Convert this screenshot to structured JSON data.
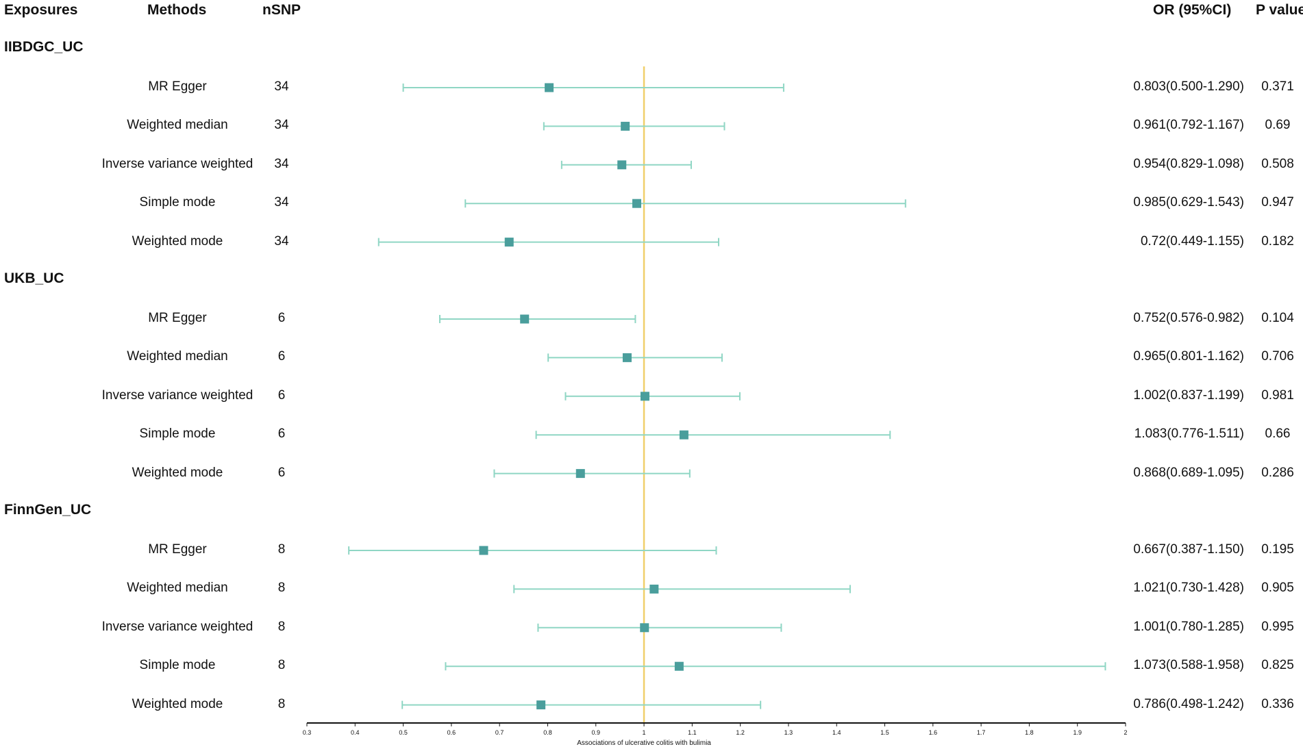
{
  "headers": {
    "exposures": "Exposures",
    "methods": "Methods",
    "nsnp": "nSNP",
    "or": "OR (95%CI)",
    "p": "P value"
  },
  "colors": {
    "errorbar": "#8fd6c4",
    "marker": "#4a9e9c",
    "refline": "#f0cf6a",
    "axis": "#111111"
  },
  "groups": [
    {
      "name": "IIBDGC_UC",
      "rows": [
        {
          "method": "MR Egger",
          "nsnp": "34",
          "or_text": "0.803(0.500-1.290)",
          "p": "0.371"
        },
        {
          "method": "Weighted median",
          "nsnp": "34",
          "or_text": "0.961(0.792-1.167)",
          "p": "0.69"
        },
        {
          "method": "Inverse variance weighted",
          "nsnp": "34",
          "or_text": "0.954(0.829-1.098)",
          "p": "0.508"
        },
        {
          "method": "Simple mode",
          "nsnp": "34",
          "or_text": "0.985(0.629-1.543)",
          "p": "0.947"
        },
        {
          "method": "Weighted mode",
          "nsnp": "34",
          "or_text": "0.72(0.449-1.155)",
          "p": "0.182"
        }
      ]
    },
    {
      "name": "UKB_UC",
      "rows": [
        {
          "method": "MR Egger",
          "nsnp": "6",
          "or_text": "0.752(0.576-0.982)",
          "p": "0.104"
        },
        {
          "method": "Weighted median",
          "nsnp": "6",
          "or_text": "0.965(0.801-1.162)",
          "p": "0.706"
        },
        {
          "method": "Inverse variance weighted",
          "nsnp": "6",
          "or_text": "1.002(0.837-1.199)",
          "p": "0.981"
        },
        {
          "method": "Simple mode",
          "nsnp": "6",
          "or_text": "1.083(0.776-1.511)",
          "p": "0.66"
        },
        {
          "method": "Weighted mode",
          "nsnp": "6",
          "or_text": "0.868(0.689-1.095)",
          "p": "0.286"
        }
      ]
    },
    {
      "name": "FinnGen_UC",
      "rows": [
        {
          "method": "MR Egger",
          "nsnp": "8",
          "or_text": "0.667(0.387-1.150)",
          "p": "0.195"
        },
        {
          "method": "Weighted median",
          "nsnp": "8",
          "or_text": "1.021(0.730-1.428)",
          "p": "0.905"
        },
        {
          "method": "Inverse variance weighted",
          "nsnp": "8",
          "or_text": "1.001(0.780-1.285)",
          "p": "0.995"
        },
        {
          "method": "Simple mode",
          "nsnp": "8",
          "or_text": "1.073(0.588-1.958)",
          "p": "0.825"
        },
        {
          "method": "Weighted mode",
          "nsnp": "8",
          "or_text": "0.786(0.498-1.242)",
          "p": "0.336"
        }
      ]
    }
  ],
  "chart_data": {
    "type": "forest",
    "xlabel": "Associations of ulcerative colitis with bulimia",
    "xlim": [
      0.3,
      2.0
    ],
    "reference_line": 1,
    "ticks": [
      "0.3",
      "0.4",
      "0.5",
      "0.6",
      "0.7",
      "0.8",
      "0.9",
      "1",
      "1.1",
      "1.2",
      "1.3",
      "1.4",
      "1.5",
      "1.6",
      "1.7",
      "1.8",
      "1.9",
      "2"
    ],
    "series": [
      {
        "group": "IIBDGC_UC",
        "method": "MR Egger",
        "or": 0.803,
        "lower": 0.5,
        "upper": 1.29
      },
      {
        "group": "IIBDGC_UC",
        "method": "Weighted median",
        "or": 0.961,
        "lower": 0.792,
        "upper": 1.167
      },
      {
        "group": "IIBDGC_UC",
        "method": "Inverse variance weighted",
        "or": 0.954,
        "lower": 0.829,
        "upper": 1.098
      },
      {
        "group": "IIBDGC_UC",
        "method": "Simple mode",
        "or": 0.985,
        "lower": 0.629,
        "upper": 1.543
      },
      {
        "group": "IIBDGC_UC",
        "method": "Weighted mode",
        "or": 0.72,
        "lower": 0.449,
        "upper": 1.155
      },
      {
        "group": "UKB_UC",
        "method": "MR Egger",
        "or": 0.752,
        "lower": 0.576,
        "upper": 0.982
      },
      {
        "group": "UKB_UC",
        "method": "Weighted median",
        "or": 0.965,
        "lower": 0.801,
        "upper": 1.162
      },
      {
        "group": "UKB_UC",
        "method": "Inverse variance weighted",
        "or": 1.002,
        "lower": 0.837,
        "upper": 1.199
      },
      {
        "group": "UKB_UC",
        "method": "Simple mode",
        "or": 1.083,
        "lower": 0.776,
        "upper": 1.511
      },
      {
        "group": "UKB_UC",
        "method": "Weighted mode",
        "or": 0.868,
        "lower": 0.689,
        "upper": 1.095
      },
      {
        "group": "FinnGen_UC",
        "method": "MR Egger",
        "or": 0.667,
        "lower": 0.387,
        "upper": 1.15
      },
      {
        "group": "FinnGen_UC",
        "method": "Weighted median",
        "or": 1.021,
        "lower": 0.73,
        "upper": 1.428
      },
      {
        "group": "FinnGen_UC",
        "method": "Inverse variance weighted",
        "or": 1.001,
        "lower": 0.78,
        "upper": 1.285
      },
      {
        "group": "FinnGen_UC",
        "method": "Simple mode",
        "or": 1.073,
        "lower": 0.588,
        "upper": 1.958
      },
      {
        "group": "FinnGen_UC",
        "method": "Weighted mode",
        "or": 0.786,
        "lower": 0.498,
        "upper": 1.242
      }
    ]
  }
}
